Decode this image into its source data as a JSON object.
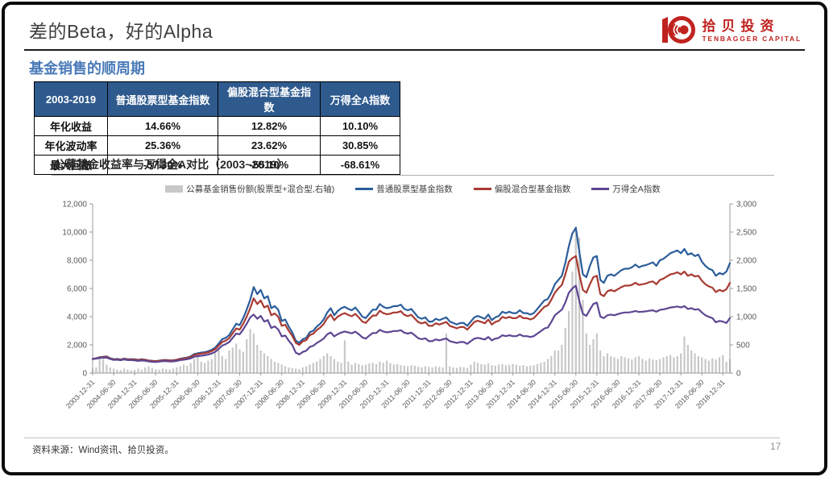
{
  "slide": {
    "title": "差的Beta，好的Alpha",
    "section_title": "基金销售的顺周期",
    "source_note": "资料来源：Wind资讯、拾贝投资。",
    "page_number": "17"
  },
  "logo": {
    "cn": "拾贝投资",
    "en": "TENBAGGER CAPITAL",
    "color": "#c0231f"
  },
  "colors": {
    "table_header_bg": "#2e5a8e",
    "section_title_blue": "#4a7ab8",
    "title_gray": "#3f3f3f"
  },
  "stats_table": {
    "header": [
      "2003-2019",
      "普通股票型基金指数",
      "偏股混合型基金指数",
      "万得全A指数"
    ],
    "rows": [
      {
        "label": "年化收益",
        "values": [
          "14.66%",
          "12.82%",
          "10.10%"
        ]
      },
      {
        "label": "年化波动率",
        "values": [
          "25.36%",
          "23.62%",
          "30.85%"
        ]
      },
      {
        "label": "最大回撤",
        "values": [
          "-57.30%",
          "-55.10%",
          "-68.61%"
        ]
      }
    ]
  },
  "chart_data": {
    "type": "line+bar",
    "title": "公募基金收益率与万得全A对比（2003~2019）",
    "x_tick_labels": [
      "2003-12-31",
      "2004-06-30",
      "2004-12-31",
      "2005-06-30",
      "2005-12-31",
      "2006-06-30",
      "2006-12-31",
      "2007-06-30",
      "2007-12-31",
      "2008-06-30",
      "2008-12-31",
      "2009-06-30",
      "2009-12-31",
      "2010-06-30",
      "2010-12-31",
      "2011-06-30",
      "2011-12-31",
      "2012-06-30",
      "2012-12-31",
      "2013-06-30",
      "2013-12-31",
      "2014-06-30",
      "2014-12-31",
      "2015-06-30",
      "2015-12-31",
      "2016-06-30",
      "2016-12-31",
      "2017-06-30",
      "2017-12-31",
      "2018-06-30",
      "2018-12-31"
    ],
    "ticks_every_n_points": 6,
    "left_axis": {
      "min": 0,
      "max": 12000,
      "tick_labels": [
        "0",
        "2,000",
        "4,000",
        "6,000",
        "8,000",
        "10,000",
        "12,000"
      ]
    },
    "right_axis": {
      "min": 0,
      "max": 3000,
      "tick_labels": [
        "0",
        "500",
        "1,000",
        "1,500",
        "2,000",
        "2,500",
        "3,000"
      ]
    },
    "bars": {
      "name": "公募基金销售份额(股票型+混合型,右轴)",
      "axis": "right",
      "color": "#c8c8c8",
      "values": [
        80,
        100,
        300,
        250,
        150,
        100,
        80,
        60,
        50,
        80,
        60,
        50,
        60,
        80,
        60,
        100,
        120,
        90,
        70,
        60,
        80,
        70,
        60,
        80,
        100,
        120,
        150,
        130,
        180,
        250,
        300,
        200,
        180,
        220,
        250,
        350,
        450,
        300,
        250,
        400,
        450,
        520,
        420,
        380,
        600,
        780,
        700,
        500,
        400,
        350,
        300,
        250,
        200,
        180,
        150,
        120,
        100,
        90,
        80,
        70,
        100,
        120,
        150,
        180,
        200,
        250,
        300,
        350,
        300,
        250,
        200,
        180,
        580,
        200,
        150,
        180,
        160,
        140,
        150,
        170,
        180,
        160,
        200,
        180,
        220,
        180,
        150,
        160,
        140,
        130,
        120,
        140,
        130,
        110,
        100,
        120,
        110,
        100,
        120,
        110,
        100,
        700,
        120,
        100,
        90,
        110,
        100,
        90,
        150,
        200,
        180,
        160,
        150,
        170,
        140,
        130,
        150,
        160,
        140,
        150,
        160,
        150,
        130,
        140,
        120,
        130,
        140,
        160,
        180,
        200,
        250,
        300,
        400,
        400,
        500,
        800,
        1100,
        1800,
        2600,
        2400,
        1300,
        700,
        500,
        600,
        700,
        400,
        300,
        350,
        300,
        280,
        250,
        300,
        280,
        260,
        240,
        280,
        300,
        250,
        220,
        260,
        240,
        230,
        250,
        280,
        300,
        320,
        280,
        300,
        350,
        650,
        500,
        400,
        350,
        300,
        280,
        250,
        220,
        260,
        240,
        280,
        320,
        200,
        250
      ]
    },
    "series": [
      {
        "name": "普通股票型基金指数",
        "axis": "left",
        "color": "#2b5d9b",
        "values": [
          1000,
          1050,
          1120,
          1150,
          1180,
          1050,
          980,
          1000,
          960,
          1030,
          980,
          990,
          980,
          940,
          980,
          950,
          900,
          870,
          850,
          880,
          920,
          930,
          900,
          910,
          950,
          1020,
          1060,
          1100,
          1180,
          1350,
          1400,
          1450,
          1480,
          1550,
          1650,
          1800,
          2100,
          2400,
          2500,
          2700,
          3100,
          3500,
          3400,
          3900,
          4500,
          5200,
          6100,
          5600,
          5900,
          5300,
          5450,
          4600,
          4750,
          4500,
          3700,
          3800,
          3300,
          2900,
          2300,
          2150,
          2400,
          2500,
          2900,
          3000,
          3300,
          3500,
          3800,
          4300,
          4600,
          4100,
          4400,
          4600,
          4700,
          4550,
          4450,
          4650,
          4350,
          4000,
          3900,
          4200,
          4500,
          4500,
          4900,
          4700,
          4600,
          4650,
          4750,
          4750,
          4850,
          4550,
          4450,
          4550,
          4250,
          3950,
          3850,
          3950,
          3650,
          3650,
          3850,
          3750,
          3850,
          3950,
          3650,
          3550,
          3450,
          3550,
          3550,
          3350,
          3650,
          3950,
          4050,
          3950,
          3850,
          4150,
          3750,
          3950,
          4050,
          4350,
          4250,
          4350,
          4250,
          4250,
          4450,
          4250,
          4250,
          4150,
          4250,
          4550,
          4850,
          5150,
          5250,
          5700,
          6300,
          6600,
          6900,
          7800,
          9000,
          9900,
          10300,
          8600,
          7000,
          6800,
          7600,
          8200,
          8300,
          6600,
          6400,
          6900,
          7000,
          6900,
          7100,
          7300,
          7400,
          7400,
          7500,
          7700,
          7500,
          7600,
          7650,
          7750,
          7850,
          7600,
          8000,
          8100,
          8300,
          8500,
          8600,
          8700,
          8500,
          8800,
          8400,
          8500,
          8300,
          8400,
          7900,
          7600,
          7400,
          7300,
          6900,
          7100,
          7000,
          7200,
          7800
        ]
      },
      {
        "name": "偏股混合型基金指数",
        "axis": "left",
        "color": "#a83a32",
        "values": [
          1000,
          1040,
          1100,
          1130,
          1150,
          1030,
          960,
          980,
          940,
          1010,
          960,
          970,
          960,
          920,
          960,
          930,
          880,
          855,
          840,
          865,
          900,
          910,
          885,
          895,
          930,
          1000,
          1030,
          1070,
          1140,
          1290,
          1340,
          1380,
          1410,
          1470,
          1560,
          1690,
          1950,
          2200,
          2300,
          2480,
          2820,
          3160,
          3080,
          3500,
          4000,
          4600,
          5300,
          4900,
          5150,
          4650,
          4780,
          4100,
          4230,
          4000,
          3350,
          3430,
          3000,
          2650,
          2150,
          2000,
          2250,
          2330,
          2700,
          2790,
          3050,
          3230,
          3480,
          3900,
          4150,
          3750,
          4000,
          4150,
          4250,
          4120,
          4030,
          4200,
          3950,
          3650,
          3560,
          3830,
          4080,
          4080,
          4420,
          4250,
          4170,
          4210,
          4300,
          4300,
          4390,
          4130,
          4040,
          4130,
          3870,
          3610,
          3520,
          3610,
          3350,
          3350,
          3530,
          3440,
          3530,
          3620,
          3350,
          3260,
          3170,
          3260,
          3260,
          3080,
          3350,
          3620,
          3710,
          3620,
          3530,
          3800,
          3440,
          3620,
          3710,
          3980,
          3890,
          3980,
          3890,
          3890,
          4070,
          3890,
          3890,
          3800,
          3890,
          4160,
          4430,
          4700,
          4800,
          5200,
          5700,
          6000,
          6250,
          7000,
          7900,
          8150,
          8300,
          7000,
          5900,
          5700,
          6300,
          6800,
          6900,
          5600,
          5450,
          5800,
          5900,
          5800,
          5950,
          6100,
          6200,
          6200,
          6250,
          6400,
          6250,
          6300,
          6350,
          6450,
          6500,
          6300,
          6600,
          6700,
          6850,
          7000,
          7050,
          7150,
          7000,
          7200,
          6900,
          7000,
          6850,
          6900,
          6550,
          6300,
          6150,
          6050,
          5750,
          5900,
          5800,
          5950,
          6400
        ]
      },
      {
        "name": "万得全A指数",
        "axis": "left",
        "color": "#5d4692",
        "values": [
          1000,
          1020,
          1070,
          1090,
          1100,
          1000,
          930,
          950,
          910,
          970,
          920,
          920,
          900,
          860,
          890,
          870,
          830,
          800,
          780,
          810,
          840,
          850,
          820,
          830,
          860,
          920,
          950,
          980,
          1040,
          1160,
          1200,
          1230,
          1260,
          1310,
          1390,
          1500,
          1720,
          1950,
          2050,
          2200,
          2500,
          2800,
          2750,
          3100,
          3500,
          3950,
          4150,
          3850,
          4050,
          3650,
          3760,
          3200,
          3310,
          3100,
          2600,
          2660,
          2300,
          2000,
          1450,
          1320,
          1500,
          1580,
          1850,
          1930,
          2130,
          2280,
          2450,
          2750,
          2880,
          2600,
          2760,
          2870,
          2950,
          2880,
          2820,
          2940,
          2760,
          2530,
          2440,
          2650,
          2840,
          2840,
          3060,
          2950,
          2890,
          2920,
          2980,
          2980,
          3040,
          2860,
          2800,
          2860,
          2680,
          2470,
          2400,
          2470,
          2260,
          2260,
          2390,
          2320,
          2390,
          2450,
          2260,
          2200,
          2130,
          2200,
          2200,
          2070,
          2260,
          2440,
          2500,
          2440,
          2380,
          2560,
          2320,
          2440,
          2500,
          2680,
          2620,
          2680,
          2620,
          2620,
          2740,
          2620,
          2620,
          2560,
          2620,
          2800,
          2970,
          3160,
          3230,
          3620,
          4100,
          4300,
          4500,
          5000,
          5700,
          6000,
          6200,
          5100,
          4200,
          4050,
          4500,
          4900,
          5000,
          4000,
          3900,
          4100,
          4150,
          4100,
          4180,
          4250,
          4300,
          4300,
          4330,
          4400,
          4330,
          4350,
          4380,
          4420,
          4450,
          4350,
          4480,
          4520,
          4580,
          4650,
          4680,
          4720,
          4650,
          4750,
          4550,
          4600,
          4500,
          4530,
          4300,
          4100,
          3980,
          3900,
          3600,
          3700,
          3650,
          3550,
          3900
        ]
      }
    ],
    "legend_position": "top-center",
    "grid": false
  }
}
